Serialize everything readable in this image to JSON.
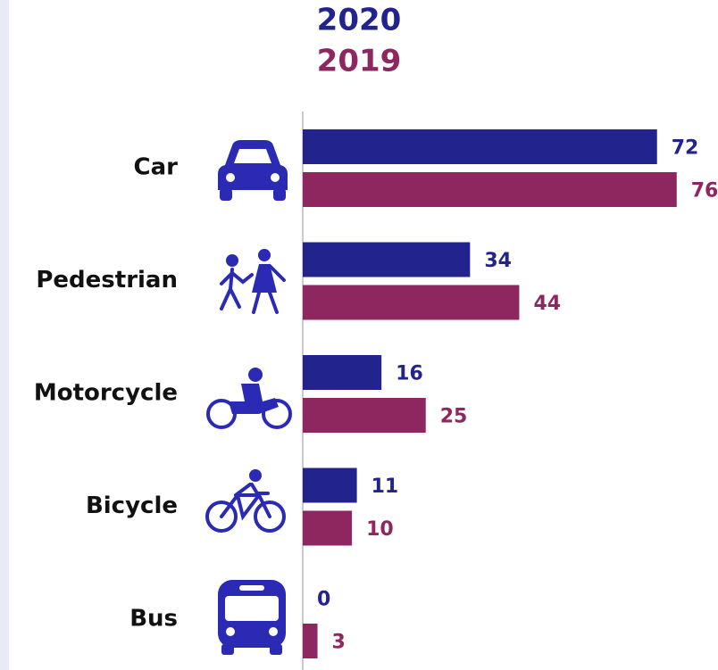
{
  "chart_data": {
    "type": "bar",
    "orientation": "horizontal",
    "categories": [
      "Car",
      "Pedestrian",
      "Motorcycle",
      "Bicycle",
      "Bus"
    ],
    "series": [
      {
        "name": "2020",
        "color": "#23238e",
        "values": [
          72,
          34,
          16,
          11,
          0
        ]
      },
      {
        "name": "2019",
        "color": "#8e2660",
        "values": [
          76,
          44,
          25,
          10,
          3
        ]
      }
    ]
  }
}
